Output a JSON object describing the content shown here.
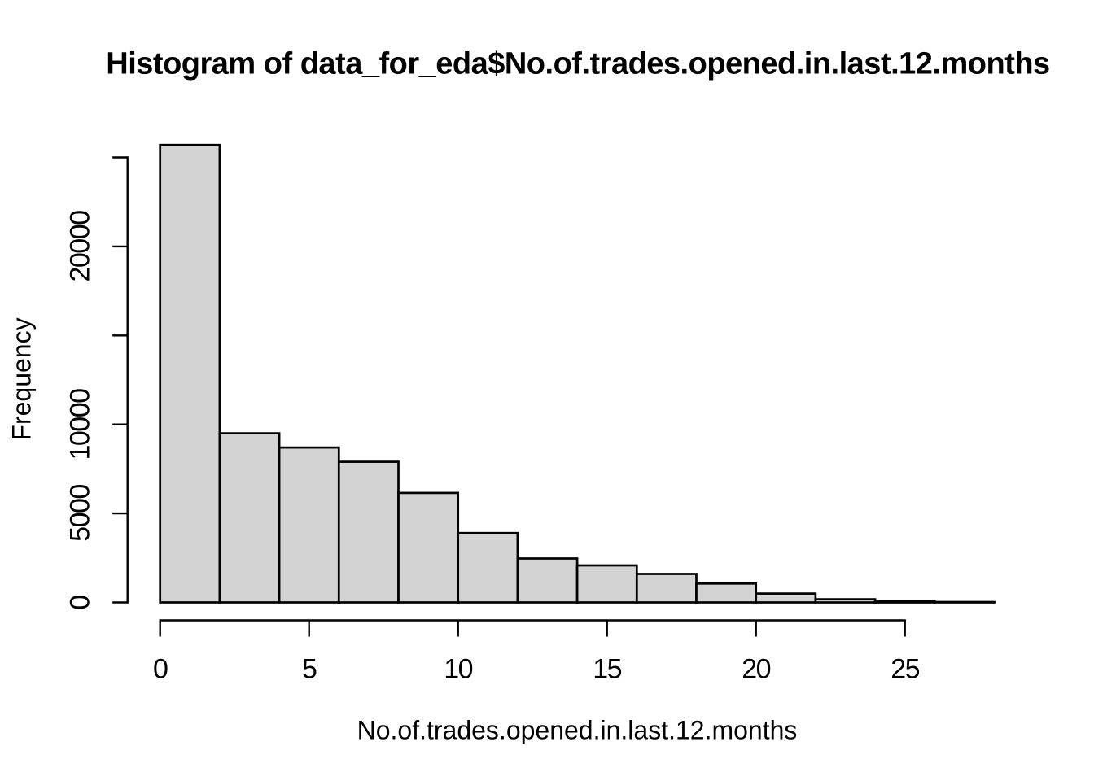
{
  "chart_data": {
    "type": "histogram",
    "title": "Histogram of data_for_eda$No.of.trades.opened.in.last.12.months",
    "xlabel": "No.of.trades.opened.in.last.12.months",
    "ylabel": "Frequency",
    "bin_width": 2,
    "bin_edges": [
      0,
      2,
      4,
      6,
      8,
      10,
      12,
      14,
      16,
      18,
      20,
      22,
      24,
      26,
      28
    ],
    "counts": [
      25700,
      9500,
      8700,
      7900,
      6150,
      3900,
      2470,
      2080,
      1600,
      1060,
      500,
      180,
      70,
      25
    ],
    "x_ticks": [
      0,
      5,
      10,
      15,
      20,
      25
    ],
    "x_tick_labels": [
      "0",
      "5",
      "10",
      "15",
      "20",
      "25"
    ],
    "y_ticks": [
      0,
      5000,
      10000,
      15000,
      20000,
      25000
    ],
    "y_tick_labels": [
      "0",
      "5000",
      "10000",
      "",
      "20000",
      ""
    ],
    "xlim": [
      0,
      28
    ],
    "ylim": [
      0,
      25700
    ],
    "grid": false,
    "legend_position": "none",
    "colors": {
      "bar_fill": "#d3d3d3",
      "bar_border": "#000000",
      "axis": "#000000",
      "text": "#000000",
      "background": "#ffffff"
    }
  }
}
